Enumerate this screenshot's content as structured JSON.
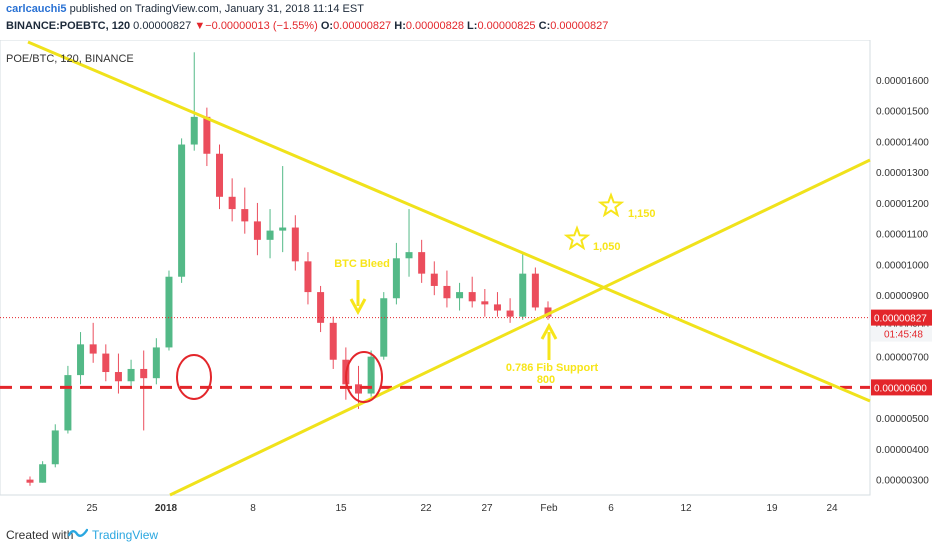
{
  "header": {
    "user": "carlcauchi5",
    "published": " published on TradingView.com, January 31, 2018 11:14 EST",
    "symbol": "BINANCE:POEBTC, 120",
    "price": "0.00000827",
    "arrow": "▼",
    "change": "−0.00000013 (−1.55%)",
    "o_label": "O:",
    "o_value": "0.00000827",
    "h_label": "H:",
    "h_value": "0.00000828",
    "l_label": "L:",
    "l_value": "0.00000825",
    "c_label": "C:",
    "c_value": "0.00000827"
  },
  "legend": "POE/BTC, 120, BINANCE",
  "footer": {
    "made": "Created with",
    "brand": "TradingView"
  },
  "chart_data": {
    "type": "candlestick",
    "y_unit": "BTC",
    "ylim": [
      2.5e-06,
      1.73e-05
    ],
    "y_ticks": [
      "0.00000300",
      "0.00000400",
      "0.00000500",
      "0.00000600",
      "0.00000700",
      "0.00000800",
      "0.00000900",
      "0.00001000",
      "0.00001100",
      "0.00001200",
      "0.00001300",
      "0.00001400",
      "0.00001500",
      "0.00001600"
    ],
    "x_ticks": [
      "25",
      "2018",
      "8",
      "15",
      "22",
      "27",
      "Feb",
      "6",
      "12",
      "19",
      "24"
    ],
    "current_price": "0.00000827",
    "countdown": "01:45:48",
    "support_label": "0.00000600",
    "series": [
      {
        "values": [
          [
            3e-06,
            3.1e-06,
            2.8e-06,
            2.9e-06
          ],
          [
            2.9e-06,
            3.6e-06,
            2.9e-06,
            3.5e-06
          ],
          [
            3.5e-06,
            4.8e-06,
            3.4e-06,
            4.6e-06
          ],
          [
            4.6e-06,
            6.7e-06,
            4.5e-06,
            6.4e-06
          ],
          [
            6.4e-06,
            7.8e-06,
            6.1e-06,
            7.4e-06
          ],
          [
            7.4e-06,
            8.1e-06,
            6.8e-06,
            7.1e-06
          ],
          [
            7.1e-06,
            7.4e-06,
            6.2e-06,
            6.5e-06
          ],
          [
            6.5e-06,
            7.1e-06,
            5.8e-06,
            6.2e-06
          ],
          [
            6.2e-06,
            6.9e-06,
            6e-06,
            6.6e-06
          ],
          [
            6.6e-06,
            7.2e-06,
            4.6e-06,
            6.3e-06
          ],
          [
            6.3e-06,
            7.6e-06,
            6.1e-06,
            7.3e-06
          ],
          [
            7.3e-06,
            9.8e-06,
            7.2e-06,
            9.6e-06
          ],
          [
            9.6e-06,
            1.41e-05,
            9.4e-06,
            1.39e-05
          ],
          [
            1.39e-05,
            1.69e-05,
            1.37e-05,
            1.48e-05
          ],
          [
            1.48e-05,
            1.51e-05,
            1.32e-05,
            1.36e-05
          ],
          [
            1.36e-05,
            1.39e-05,
            1.18e-05,
            1.22e-05
          ],
          [
            1.22e-05,
            1.28e-05,
            1.14e-05,
            1.18e-05
          ],
          [
            1.18e-05,
            1.25e-05,
            1.1e-05,
            1.14e-05
          ],
          [
            1.14e-05,
            1.2e-05,
            1.03e-05,
            1.08e-05
          ],
          [
            1.08e-05,
            1.18e-05,
            1.02e-05,
            1.11e-05
          ],
          [
            1.11e-05,
            1.32e-05,
            1.04e-05,
            1.12e-05
          ],
          [
            1.12e-05,
            1.16e-05,
            9.8e-06,
            1.01e-05
          ],
          [
            1.01e-05,
            1.04e-05,
            8.7e-06,
            9.1e-06
          ],
          [
            9.1e-06,
            9.3e-06,
            7.8e-06,
            8.1e-06
          ],
          [
            8.1e-06,
            8.3e-06,
            6.6e-06,
            6.9e-06
          ],
          [
            6.9e-06,
            7.3e-06,
            5.6e-06,
            6.1e-06
          ],
          [
            6.1e-06,
            6.7e-06,
            5.3e-06,
            5.8e-06
          ],
          [
            5.8e-06,
            7.2e-06,
            5.7e-06,
            7e-06
          ],
          [
            7e-06,
            9.1e-06,
            6.9e-06,
            8.9e-06
          ],
          [
            8.9e-06,
            1.07e-05,
            8.7e-06,
            1.02e-05
          ],
          [
            1.02e-05,
            1.18e-05,
            9.6e-06,
            1.04e-05
          ],
          [
            1.04e-05,
            1.08e-05,
            9.4e-06,
            9.7e-06
          ],
          [
            9.7e-06,
            1.01e-05,
            9e-06,
            9.3e-06
          ],
          [
            9.3e-06,
            9.8e-06,
            8.6e-06,
            8.9e-06
          ],
          [
            8.9e-06,
            9.4e-06,
            8.5e-06,
            9.1e-06
          ],
          [
            9.1e-06,
            9.6e-06,
            8.6e-06,
            8.8e-06
          ],
          [
            8.8e-06,
            9.2e-06,
            8.3e-06,
            8.7e-06
          ],
          [
            8.7e-06,
            9.1e-06,
            8.3e-06,
            8.5e-06
          ],
          [
            8.5e-06,
            8.9e-06,
            8.1e-06,
            8.3e-06
          ],
          [
            8.3e-06,
            1.04e-05,
            8.2e-06,
            9.7e-06
          ],
          [
            9.7e-06,
            9.9e-06,
            8.5e-06,
            8.6e-06
          ],
          [
            8.6e-06,
            8.8e-06,
            8.2e-06,
            8.3e-06
          ]
        ]
      }
    ],
    "annotations": [
      {
        "type": "text",
        "text": "BTC Bleed"
      },
      {
        "type": "text",
        "text": "0.786 Fib Support"
      },
      {
        "type": "text",
        "text": "800"
      },
      {
        "type": "star",
        "text": "1,050"
      },
      {
        "type": "star",
        "text": "1,150"
      },
      {
        "type": "hline",
        "price": 6e-06
      },
      {
        "type": "trendline",
        "label": "descending resistance"
      },
      {
        "type": "trendline",
        "label": "ascending support"
      }
    ],
    "colors": {
      "up": "#53b987",
      "down": "#eb4d5c",
      "trend": "#f0e21b",
      "support": "#e3262b",
      "annot": "#f7e51a"
    }
  }
}
